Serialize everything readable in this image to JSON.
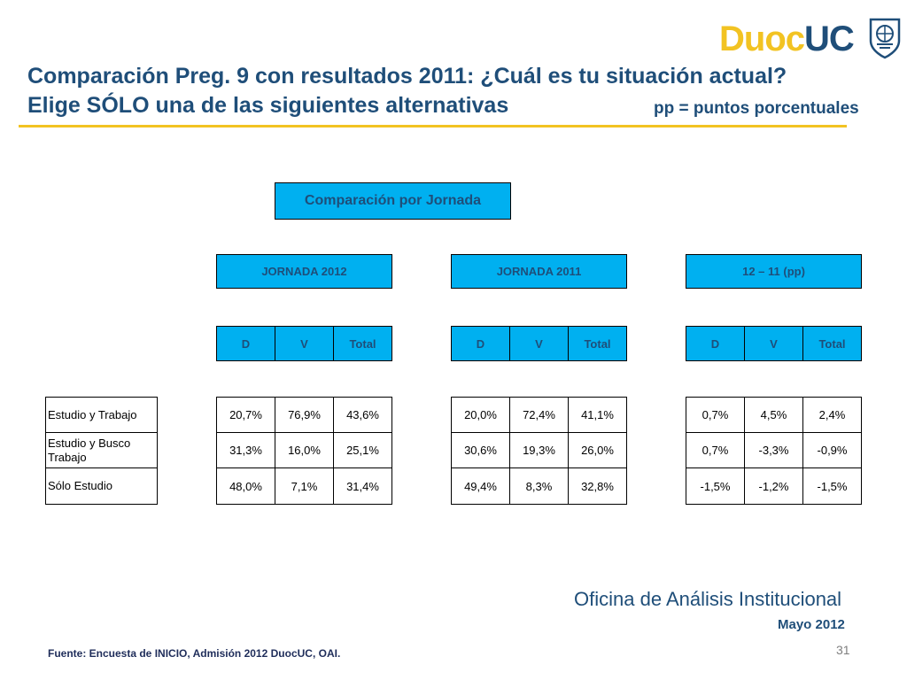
{
  "header": {
    "title_line1": "Comparación Preg. 9 con resultados 2011: ¿Cuál es tu situación actual?",
    "title_line2": "Elige SÓLO una de las siguientes alternativas",
    "pp_note": "pp = puntos porcentuales",
    "logo_part1": "Duoc",
    "logo_part2": "UC"
  },
  "table": {
    "title": "Comparación por Jornada",
    "groups": [
      {
        "header": "JORNADA 2012",
        "columns": [
          "D",
          "V",
          "Total"
        ],
        "rows": [
          [
            "20,7%",
            "76,9%",
            "43,6%"
          ],
          [
            "31,3%",
            "16,0%",
            "25,1%"
          ],
          [
            "48,0%",
            "7,1%",
            "31,4%"
          ]
        ]
      },
      {
        "header": "JORNADA 2011",
        "columns": [
          "D",
          "V",
          "Total"
        ],
        "rows": [
          [
            "20,0%",
            "72,4%",
            "41,1%"
          ],
          [
            "30,6%",
            "19,3%",
            "26,0%"
          ],
          [
            "49,4%",
            "8,3%",
            "32,8%"
          ]
        ]
      },
      {
        "header": "12 – 11 (pp)",
        "columns": [
          "D",
          "V",
          "Total"
        ],
        "rows": [
          [
            "0,7%",
            "4,5%",
            "2,4%"
          ],
          [
            "0,7%",
            "-3,3%",
            "-0,9%"
          ],
          [
            "-1,5%",
            "-1,2%",
            "-1,5%"
          ]
        ]
      }
    ],
    "row_labels": [
      "Estudio y Trabajo",
      "Estudio y Busco Trabajo",
      "Sólo Estudio"
    ]
  },
  "footer": {
    "office": "Oficina de Análisis Institucional",
    "date": "Mayo 2012",
    "source": "Fuente: Encuesta de INICIO, Admisión 2012 DuocUC, OAI.",
    "page_number": "31"
  },
  "colors": {
    "navy": "#1f4e79",
    "cyan": "#00b0f0",
    "gold": "#f2c322"
  }
}
